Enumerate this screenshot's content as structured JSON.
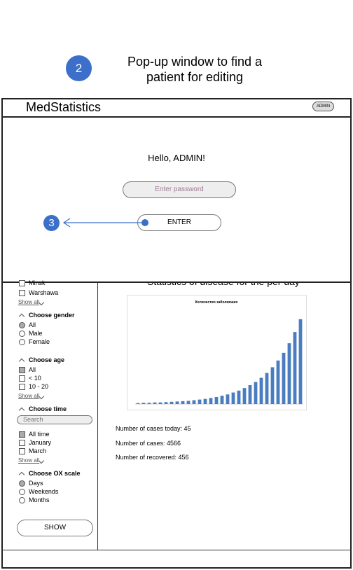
{
  "annotation": {
    "step": "2",
    "text": "Pop-up window to find a patient for editing"
  },
  "header": {
    "title": "MedStatistics",
    "user": "ADMIN"
  },
  "popup": {
    "greeting": "Hello, ADMIN!",
    "password_placeholder": "Enter password",
    "button": "ENTER",
    "step": "3"
  },
  "sidebar": {
    "cities": [
      "Minsk",
      "Warshawa"
    ],
    "show_all": "Show all",
    "groups": [
      {
        "title": "Choose gender",
        "kind": "radio",
        "options": [
          "All",
          "Male",
          "Female"
        ],
        "selected": 0
      },
      {
        "title": "Choose age",
        "kind": "check",
        "options": [
          "All",
          "< 10",
          "10 - 20"
        ],
        "selected": 0,
        "show_all": true
      },
      {
        "title": "Choose time",
        "kind": "check",
        "search": "Search",
        "options": [
          "All time",
          "January",
          "March"
        ],
        "selected": 0,
        "show_all": true
      },
      {
        "title": "Choose OX scale",
        "kind": "radio",
        "options": [
          "Days",
          "Weekends",
          "Months"
        ],
        "selected": 0
      }
    ],
    "button": "SHOW"
  },
  "main": {
    "title": "Statistics of disease for the per day",
    "stats": [
      "Number of cases today: 45",
      "Number of cases: 4566",
      "Number of recovered: 456"
    ]
  },
  "chart_data": {
    "type": "bar",
    "title": "Количество заболевших",
    "color": "#4a7dbf",
    "ylim": [
      0,
      280
    ],
    "values": [
      3,
      4,
      4,
      5,
      5,
      6,
      7,
      8,
      9,
      10,
      12,
      14,
      16,
      19,
      22,
      26,
      30,
      36,
      42,
      50,
      59,
      69,
      82,
      97,
      115,
      136,
      160,
      190,
      225,
      265
    ]
  }
}
